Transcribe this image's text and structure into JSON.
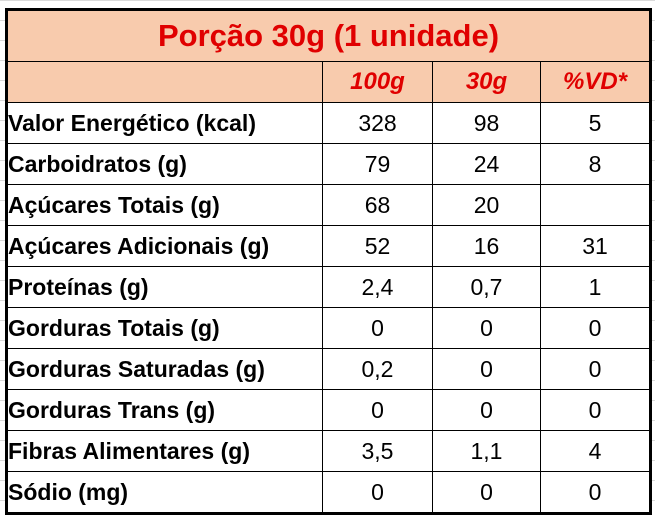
{
  "table": {
    "title": "Porção 30g (1 unidade)",
    "columns": [
      "100g",
      "30g",
      "%VD*"
    ],
    "rows": [
      [
        "Valor Energético (kcal)",
        "328",
        "98",
        "5"
      ],
      [
        "Carboidratos (g)",
        "79",
        "24",
        "8"
      ],
      [
        "Açúcares Totais (g)",
        "68",
        "20",
        null
      ],
      [
        "Açúcares Adicionais (g)",
        "52",
        "16",
        "31"
      ],
      [
        "Proteínas (g)",
        "2,4",
        "0,7",
        "1"
      ],
      [
        "Gorduras Totais (g)",
        "0",
        "0",
        "0"
      ],
      [
        "Gorduras Saturadas (g)",
        "0,2",
        "0",
        "0"
      ],
      [
        "Gorduras Trans (g)",
        "0",
        "0",
        "0"
      ],
      [
        "Fibras Alimentares (g)",
        "3,5",
        "1,1",
        "4"
      ],
      [
        "Sódio (mg)",
        "0",
        "0",
        "0"
      ]
    ]
  }
}
